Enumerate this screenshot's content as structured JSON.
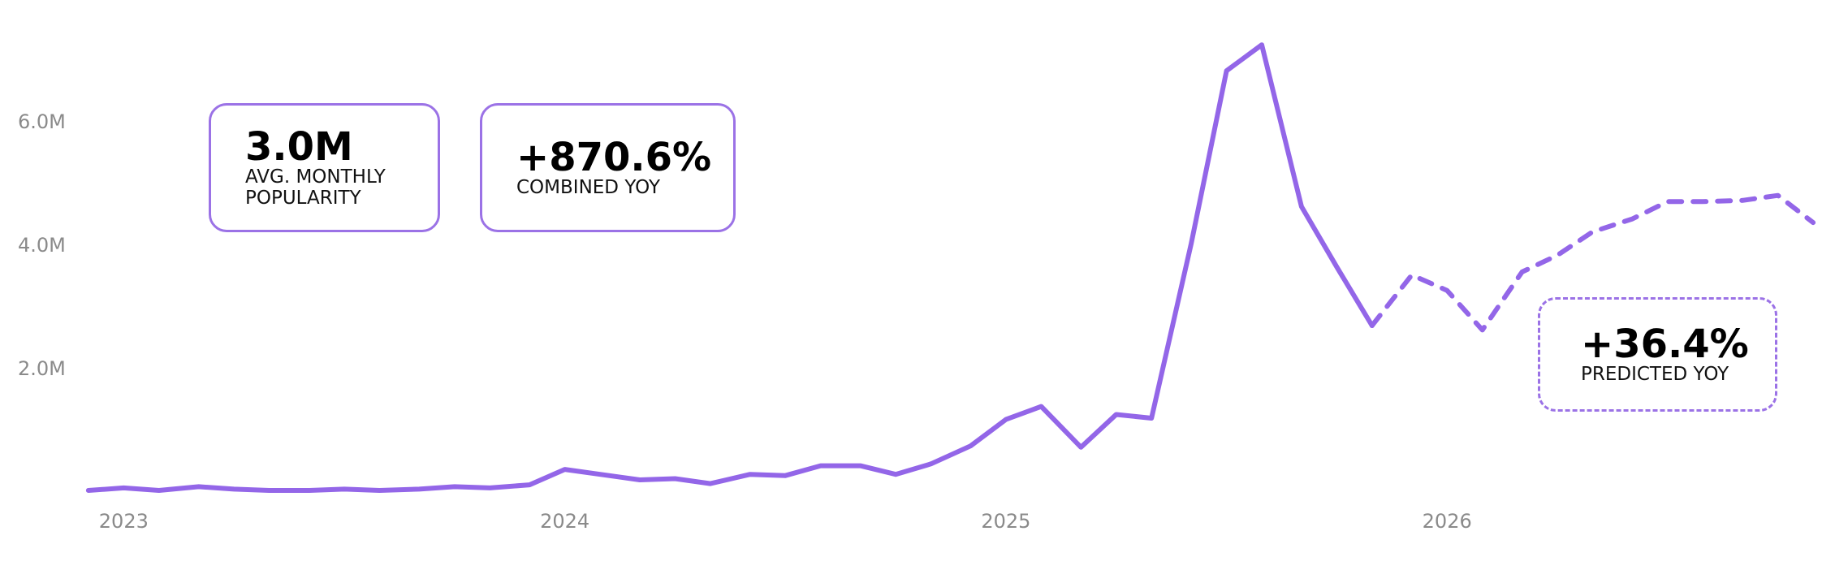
{
  "chart_data": {
    "type": "line",
    "x": [
      2022.92,
      2023,
      2023.08,
      2023.17,
      2023.25,
      2023.33,
      2023.42,
      2023.5,
      2023.58,
      2023.67,
      2023.75,
      2023.83,
      2023.92,
      2024,
      2024.08,
      2024.17,
      2024.25,
      2024.33,
      2024.42,
      2024.5,
      2024.58,
      2024.67,
      2024.75,
      2024.83,
      2024.92,
      2025,
      2025.08,
      2025.17,
      2025.25,
      2025.33,
      2025.42,
      2025.5,
      2025.58,
      2025.67,
      2025.75,
      2025.83,
      2025.92,
      2026,
      2026.08,
      2026.17,
      2026.25,
      2026.33,
      2026.42,
      2026.5,
      2026.58,
      2026.67,
      2026.75,
      2026.83
    ],
    "series": [
      {
        "color": "#9366e8",
        "dashed": false,
        "values": [
          0.04,
          0.08,
          0.04,
          0.1,
          0.06,
          0.04,
          0.04,
          0.06,
          0.04,
          0.06,
          0.1,
          0.08,
          0.13,
          0.38,
          0.3,
          0.21,
          0.23,
          0.15,
          0.3,
          0.28,
          0.44,
          0.44,
          0.3,
          0.47,
          0.76,
          1.19,
          1.4,
          0.74,
          1.27,
          1.21,
          4.04,
          6.84,
          7.26,
          4.64,
          3.66,
          2.71,
          null,
          null,
          null,
          null,
          null,
          null,
          null,
          null,
          null,
          null,
          null,
          null
        ]
      },
      {
        "color": "#9366e8",
        "dashed": true,
        "values": [
          null,
          null,
          null,
          null,
          null,
          null,
          null,
          null,
          null,
          null,
          null,
          null,
          null,
          null,
          null,
          null,
          null,
          null,
          null,
          null,
          null,
          null,
          null,
          null,
          null,
          null,
          null,
          null,
          null,
          null,
          null,
          null,
          null,
          null,
          null,
          2.71,
          3.53,
          3.28,
          2.64,
          3.58,
          3.85,
          4.23,
          4.44,
          4.72,
          4.72,
          4.74,
          4.82,
          4.38
        ]
      }
    ],
    "xlim": [
      2022.9,
      2026.85
    ],
    "xticks": [
      2023,
      2024,
      2025,
      2026
    ],
    "ylim": [
      0,
      7.5
    ],
    "yticks": [
      {
        "value": 2,
        "label": "2.0M"
      },
      {
        "value": 4,
        "label": "4.0M"
      },
      {
        "value": 6,
        "label": "6.0M"
      }
    ],
    "grid": false
  },
  "stats": [
    {
      "value": "3.0M",
      "label": "AVG. MONTHLY POPULARITY"
    },
    {
      "value": "+870.6%",
      "label": "COMBINED YOY"
    },
    {
      "value": "+36.4%",
      "label": "PREDICTED YOY"
    }
  ]
}
